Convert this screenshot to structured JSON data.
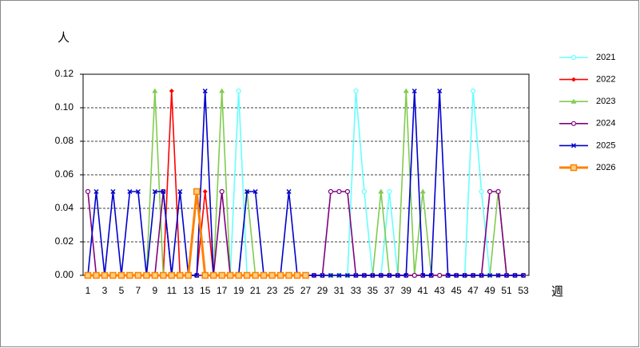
{
  "chart_data": {
    "type": "line",
    "y_label": "人",
    "x_label": "週",
    "categories": [
      1,
      null,
      3,
      null,
      5,
      null,
      7,
      null,
      9,
      null,
      11,
      null,
      13,
      null,
      15,
      null,
      17,
      null,
      19,
      null,
      21,
      null,
      23,
      null,
      25,
      null,
      27,
      null,
      29,
      null,
      31,
      null,
      33,
      null,
      35,
      null,
      37,
      null,
      39,
      null,
      41,
      null,
      43,
      null,
      45,
      null,
      47,
      null,
      49,
      null,
      51,
      null,
      53
    ],
    "ylim": [
      0,
      0.12
    ],
    "yticks": [
      {
        "value": 0,
        "label": "0.00"
      },
      {
        "value": 0.02,
        "label": "0.02"
      },
      {
        "value": 0.04,
        "label": "0.04"
      },
      {
        "value": 0.06,
        "label": "0.06"
      },
      {
        "value": 0.08,
        "label": "0.08"
      },
      {
        "value": 0.1,
        "label": "0.10"
      },
      {
        "value": 0.12,
        "label": "0.12"
      }
    ],
    "grid": true,
    "legend": "right",
    "series": [
      {
        "name": "2021",
        "color": "#66ffff",
        "marker": "circle",
        "values": [
          0,
          0,
          0,
          0,
          0,
          0,
          0,
          0,
          0,
          0,
          0,
          0,
          0,
          0,
          0,
          0,
          0,
          0,
          0.11,
          0,
          0,
          0,
          0,
          0,
          0,
          0,
          0,
          0,
          0,
          0,
          0,
          0,
          0.11,
          0.05,
          0,
          0,
          0.05,
          0,
          0,
          0,
          0,
          0,
          0,
          0,
          0,
          0,
          0.11,
          0.05,
          0,
          0,
          0,
          0,
          0
        ]
      },
      {
        "name": "2022",
        "color": "#ff0000",
        "marker": "diamond",
        "values": [
          0,
          0,
          0,
          0,
          0,
          0,
          0,
          0,
          0,
          0,
          0.11,
          0,
          0,
          0,
          0.05,
          0,
          0,
          0,
          0,
          0,
          0,
          0,
          0,
          0,
          0,
          0,
          0,
          0,
          0,
          0,
          0,
          0,
          0,
          0,
          0,
          0,
          0,
          0,
          0,
          0,
          0,
          0,
          0,
          0,
          0,
          0,
          0,
          0,
          0,
          0,
          0,
          0,
          0
        ]
      },
      {
        "name": "2023",
        "color": "#80cc50",
        "marker": "triangle",
        "values": [
          0,
          0,
          0,
          0,
          0,
          0,
          0,
          0,
          0.11,
          0,
          0,
          0,
          0,
          0,
          0,
          0,
          0.11,
          0,
          0,
          0.05,
          0,
          0,
          0,
          0,
          0,
          0,
          0,
          0,
          0,
          0,
          0,
          0,
          0,
          0,
          0,
          0.05,
          0,
          0,
          0.11,
          0,
          0.05,
          0,
          0,
          0,
          0,
          0,
          0,
          0,
          0,
          0.05,
          0,
          0,
          0
        ]
      },
      {
        "name": "2024",
        "color": "#800080",
        "marker": "circle",
        "values": [
          0.05,
          0,
          0,
          0,
          0,
          0,
          0,
          0,
          0,
          0.05,
          0,
          0,
          0,
          0,
          0,
          0,
          0.05,
          0,
          0,
          0,
          0,
          0,
          0,
          0,
          0,
          0,
          0,
          0,
          0,
          0.05,
          0.05,
          0.05,
          0,
          0,
          0,
          0,
          0,
          0,
          0,
          0,
          0,
          0,
          0,
          0,
          0,
          0,
          0,
          0,
          0.05,
          0.05,
          0,
          0,
          0
        ]
      },
      {
        "name": "2025",
        "color": "#0000cc",
        "marker": "x",
        "values": [
          0,
          0.05,
          0,
          0.05,
          0,
          0.05,
          0.05,
          0,
          0.05,
          0.05,
          0,
          0.05,
          0,
          0,
          0.11,
          0,
          0,
          0,
          0,
          0.05,
          0.05,
          0,
          0,
          0,
          0.05,
          0,
          0,
          0,
          0,
          0,
          0,
          0,
          0,
          0,
          0,
          0,
          0,
          0,
          0,
          0.11,
          0,
          0,
          0.11,
          0,
          0,
          0,
          0,
          0,
          0,
          0,
          0,
          0,
          0
        ]
      },
      {
        "name": "2026",
        "color": "#ff8000",
        "marker": "square",
        "values": [
          0,
          0,
          0,
          0,
          0,
          0,
          0,
          0,
          0,
          0,
          0,
          0,
          0,
          0.05,
          0,
          0,
          0,
          0,
          0,
          0,
          0,
          0,
          0,
          0,
          0,
          0,
          0,
          null,
          null,
          null,
          null,
          null,
          null,
          null,
          null,
          null,
          null,
          null,
          null,
          null,
          null,
          null,
          null,
          null,
          null,
          null,
          null,
          null,
          null,
          null,
          null,
          null,
          null
        ]
      }
    ]
  }
}
